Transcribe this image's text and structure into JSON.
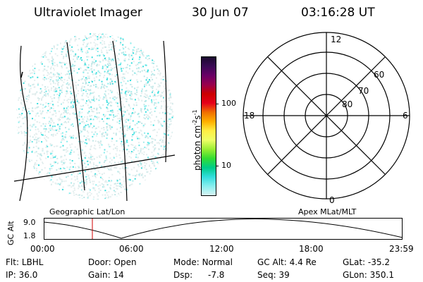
{
  "header": {
    "title": "Ultraviolet Imager",
    "date": "30 Jun 07",
    "time": "03:16:28 UT"
  },
  "colorbar": {
    "label": "photon cm",
    "label_sup1": "-2",
    "label_mid": "s",
    "label_sup2": "-1",
    "ticks": [
      "100",
      "10"
    ],
    "colors": [
      "#1a0a2e",
      "#3a0a55",
      "#6a0066",
      "#99004d",
      "#cc0000",
      "#e6001a",
      "#f07000",
      "#ffb000",
      "#ffee44",
      "#eeff66",
      "#99ee33",
      "#33dd33",
      "#00cc88",
      "#33dddd",
      "#88eeee",
      "#d8f4f4"
    ]
  },
  "polar": {
    "mlt_labels": {
      "top": "12",
      "left": "18",
      "right": "6",
      "bottom": "0"
    },
    "lat_labels": [
      "60",
      "70",
      "80"
    ]
  },
  "timeline": {
    "ylabel": "GC Alt",
    "yticks": [
      "9.0",
      "1.8"
    ],
    "left_title": "Geographic Lat/Lon",
    "right_title": "Apex MLat/MLT",
    "xticks": [
      "00:00",
      "06:00",
      "12:00",
      "18:00",
      "23:59"
    ],
    "marker_time": "03:16"
  },
  "info": [
    [
      {
        "k": "Flt:",
        "v": "LBHL"
      },
      {
        "k": "Door:",
        "v": "Open"
      },
      {
        "k": "Mode:",
        "v": "Normal"
      },
      {
        "k": "GC Alt:",
        "v": "4.4 Re"
      },
      {
        "k": "GLat:",
        "v": "-35.2"
      }
    ],
    [
      {
        "k": "IP:",
        "v": "36.0"
      },
      {
        "k": "Gain:",
        "v": "14"
      },
      {
        "k": "Dsp:",
        "v": "-7.8"
      },
      {
        "k": "Seq:",
        "v": "39"
      },
      {
        "k": "GLon:",
        "v": "350.1"
      }
    ]
  ]
}
